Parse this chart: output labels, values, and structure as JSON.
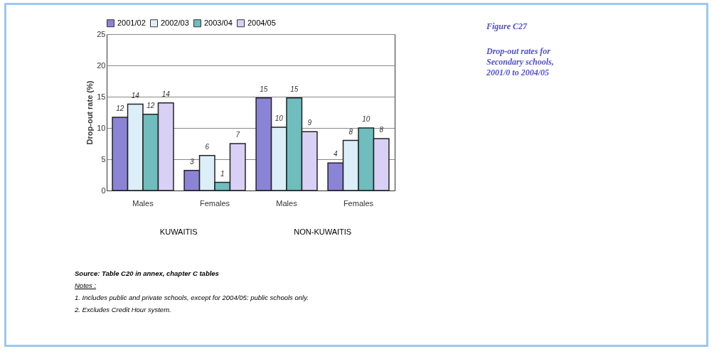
{
  "chart_data": {
    "type": "bar",
    "title": "Figure C27",
    "subtitle": "Drop-out rates for Secondary schools, 2001/0 to 2004/05",
    "ylabel": "Drop-out rate (%)",
    "categories": [
      "Males",
      "Females",
      "Males",
      "Females"
    ],
    "series": [
      {
        "name": "2001/02",
        "color": "#8b84d6",
        "values": [
          11.7,
          3.2,
          14.8,
          4.4
        ],
        "value_labels": [
          "12",
          "3",
          "15",
          "4"
        ]
      },
      {
        "name": "2002/03",
        "color": "#dceef8",
        "values": [
          13.8,
          5.6,
          10.1,
          8.0
        ],
        "value_labels": [
          "14",
          "6",
          "10",
          "8"
        ]
      },
      {
        "name": "2003/04",
        "color": "#6fbdbd",
        "values": [
          12.2,
          1.3,
          14.8,
          10.0
        ],
        "value_labels": [
          "12",
          "1",
          "15",
          "10"
        ]
      },
      {
        "name": "2004/05",
        "color": "#d9d0f5",
        "values": [
          14.0,
          7.5,
          9.4,
          8.3
        ],
        "value_labels": [
          "14",
          "7",
          "9",
          "8"
        ]
      }
    ],
    "ylim": [
      0,
      25
    ],
    "yticks": [
      0,
      5,
      10,
      15,
      20,
      25
    ],
    "grid": "y",
    "legend": "top",
    "annotations": [
      "KUWAITIS",
      "NON-KUWAITIS",
      "Source: Table C20 in annex, chapter C tables",
      "Notes :",
      "1. Includes public and private schools, except for 2004/05: public schools only.",
      "2. Excludes Credit Hour system."
    ]
  }
}
